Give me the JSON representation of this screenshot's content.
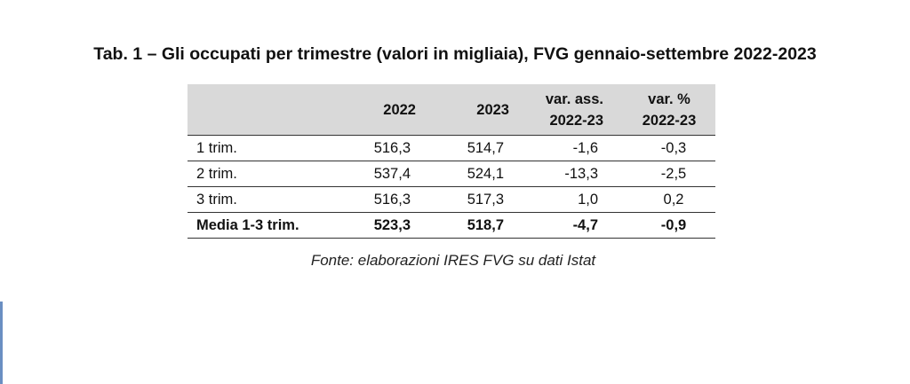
{
  "title": "Tab. 1 – Gli occupati per trimestre (valori in migliaia), FVG gennaio-settembre 2022-2023",
  "table": {
    "columns": [
      [
        "2022"
      ],
      [
        "2023"
      ],
      [
        "var. ass.",
        "2022-23"
      ],
      [
        "var. %",
        "2022-23"
      ]
    ],
    "rows": [
      [
        "1 trim.",
        "516,3",
        "514,7",
        "-1,6",
        "-0,3"
      ],
      [
        "2 trim.",
        "537,4",
        "524,1",
        "-13,3",
        "-2,5"
      ],
      [
        "3 trim.",
        "516,3",
        "517,3",
        "1,0",
        "0,2"
      ],
      [
        "Media 1-3 trim.",
        "523,3",
        "518,7",
        "-4,7",
        "-0,9"
      ]
    ]
  },
  "source": "Fonte: elaborazioni IRES FVG su dati Istat"
}
